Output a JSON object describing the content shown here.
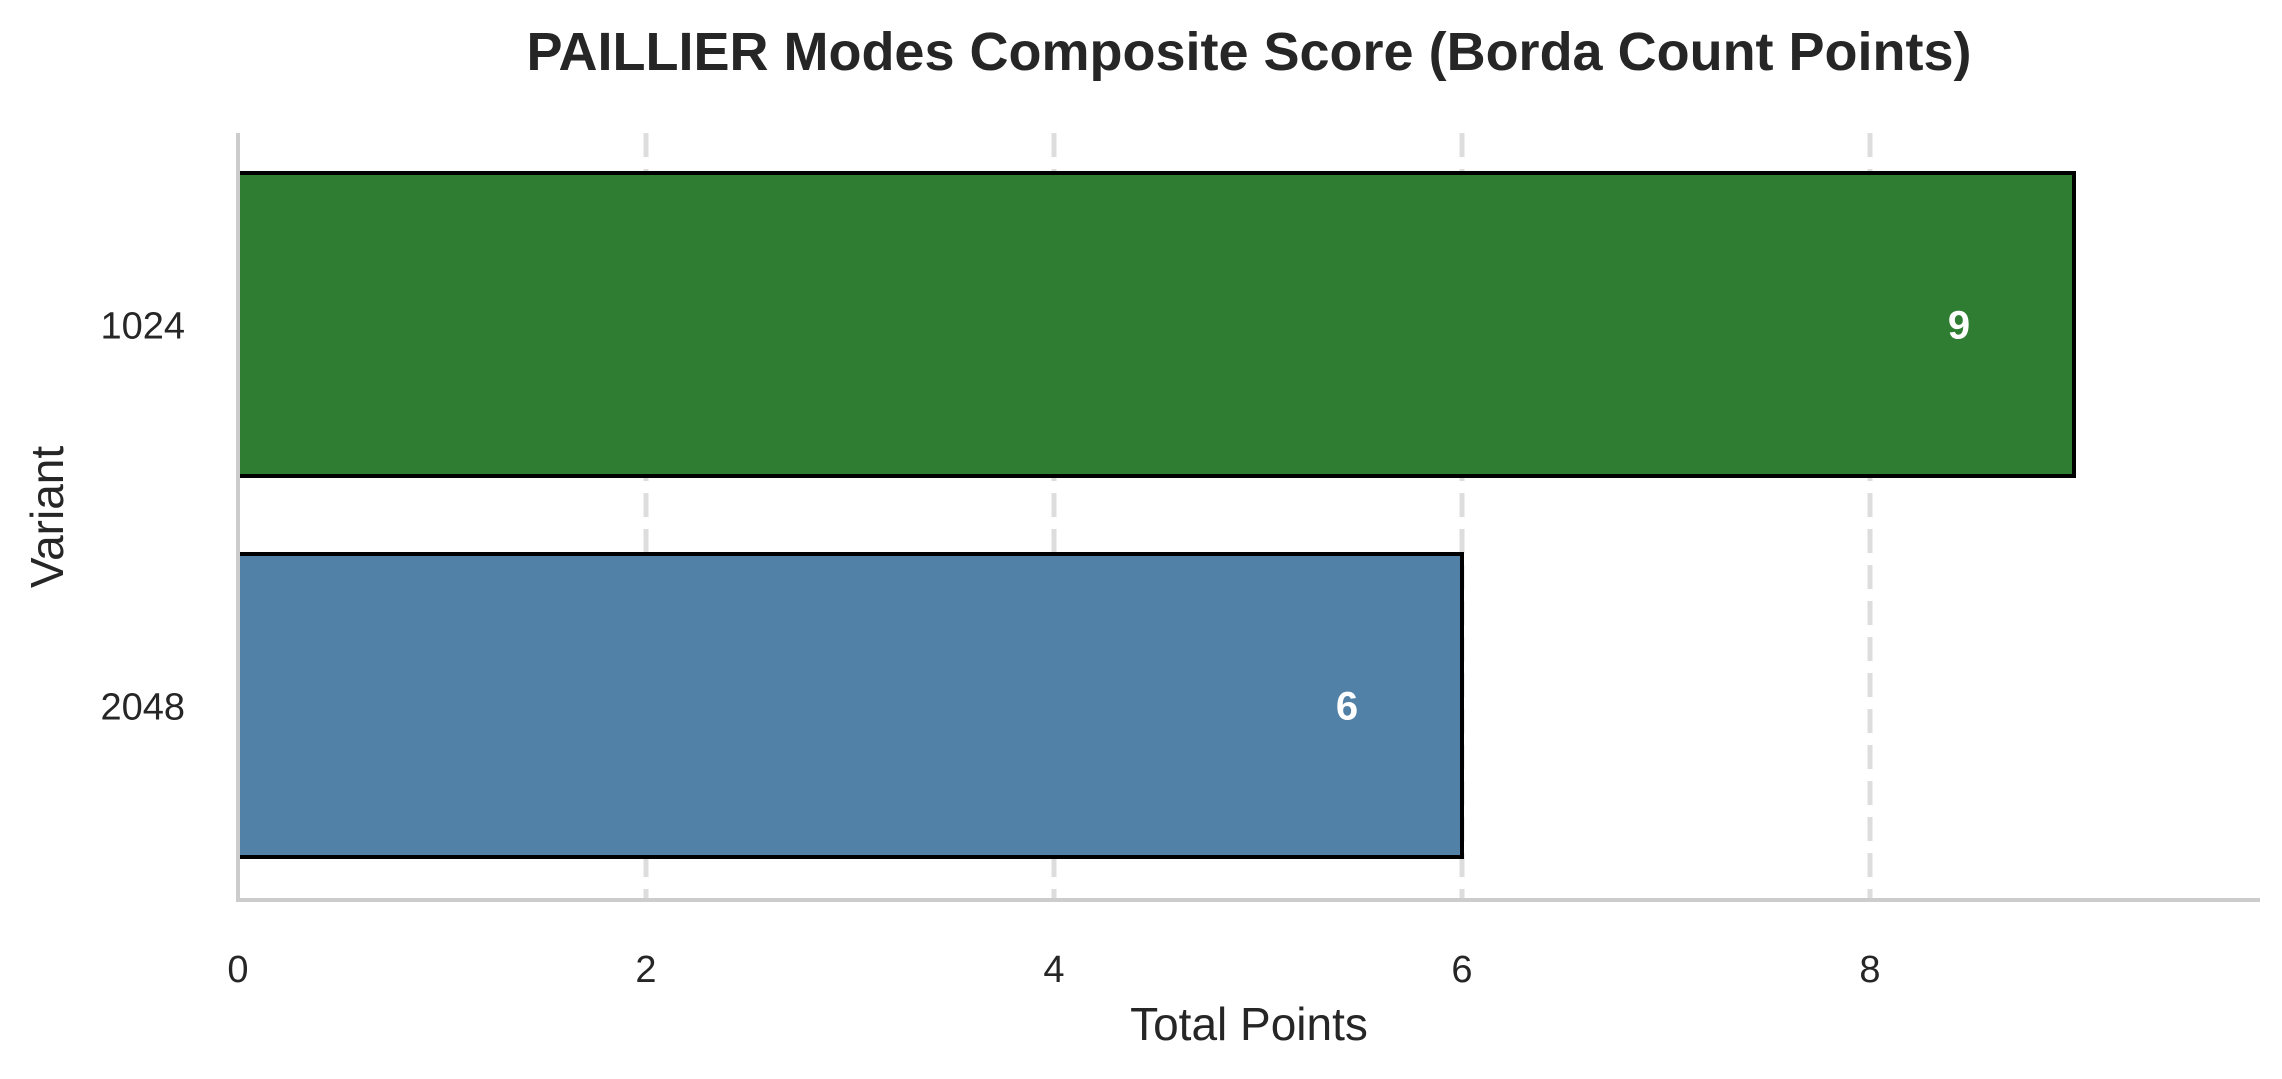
{
  "chart_data": {
    "type": "bar",
    "orientation": "horizontal",
    "title": "PAILLIER Modes Composite Score (Borda Count Points)",
    "xlabel": "Total Points",
    "ylabel": "Variant",
    "categories": [
      "1024",
      "2048"
    ],
    "values": [
      9,
      6
    ],
    "value_labels": [
      "9",
      "6"
    ],
    "bar_colors": [
      "#2f7d32",
      "#5181a7"
    ],
    "bar_edge_color": "#000000",
    "xlim": [
      0,
      9.9
    ],
    "xticks": [
      0,
      2,
      4,
      6,
      8
    ],
    "xtick_labels": [
      "0",
      "2",
      "4",
      "6",
      "8"
    ],
    "grid": "x-axis dashed",
    "legend": "none"
  }
}
